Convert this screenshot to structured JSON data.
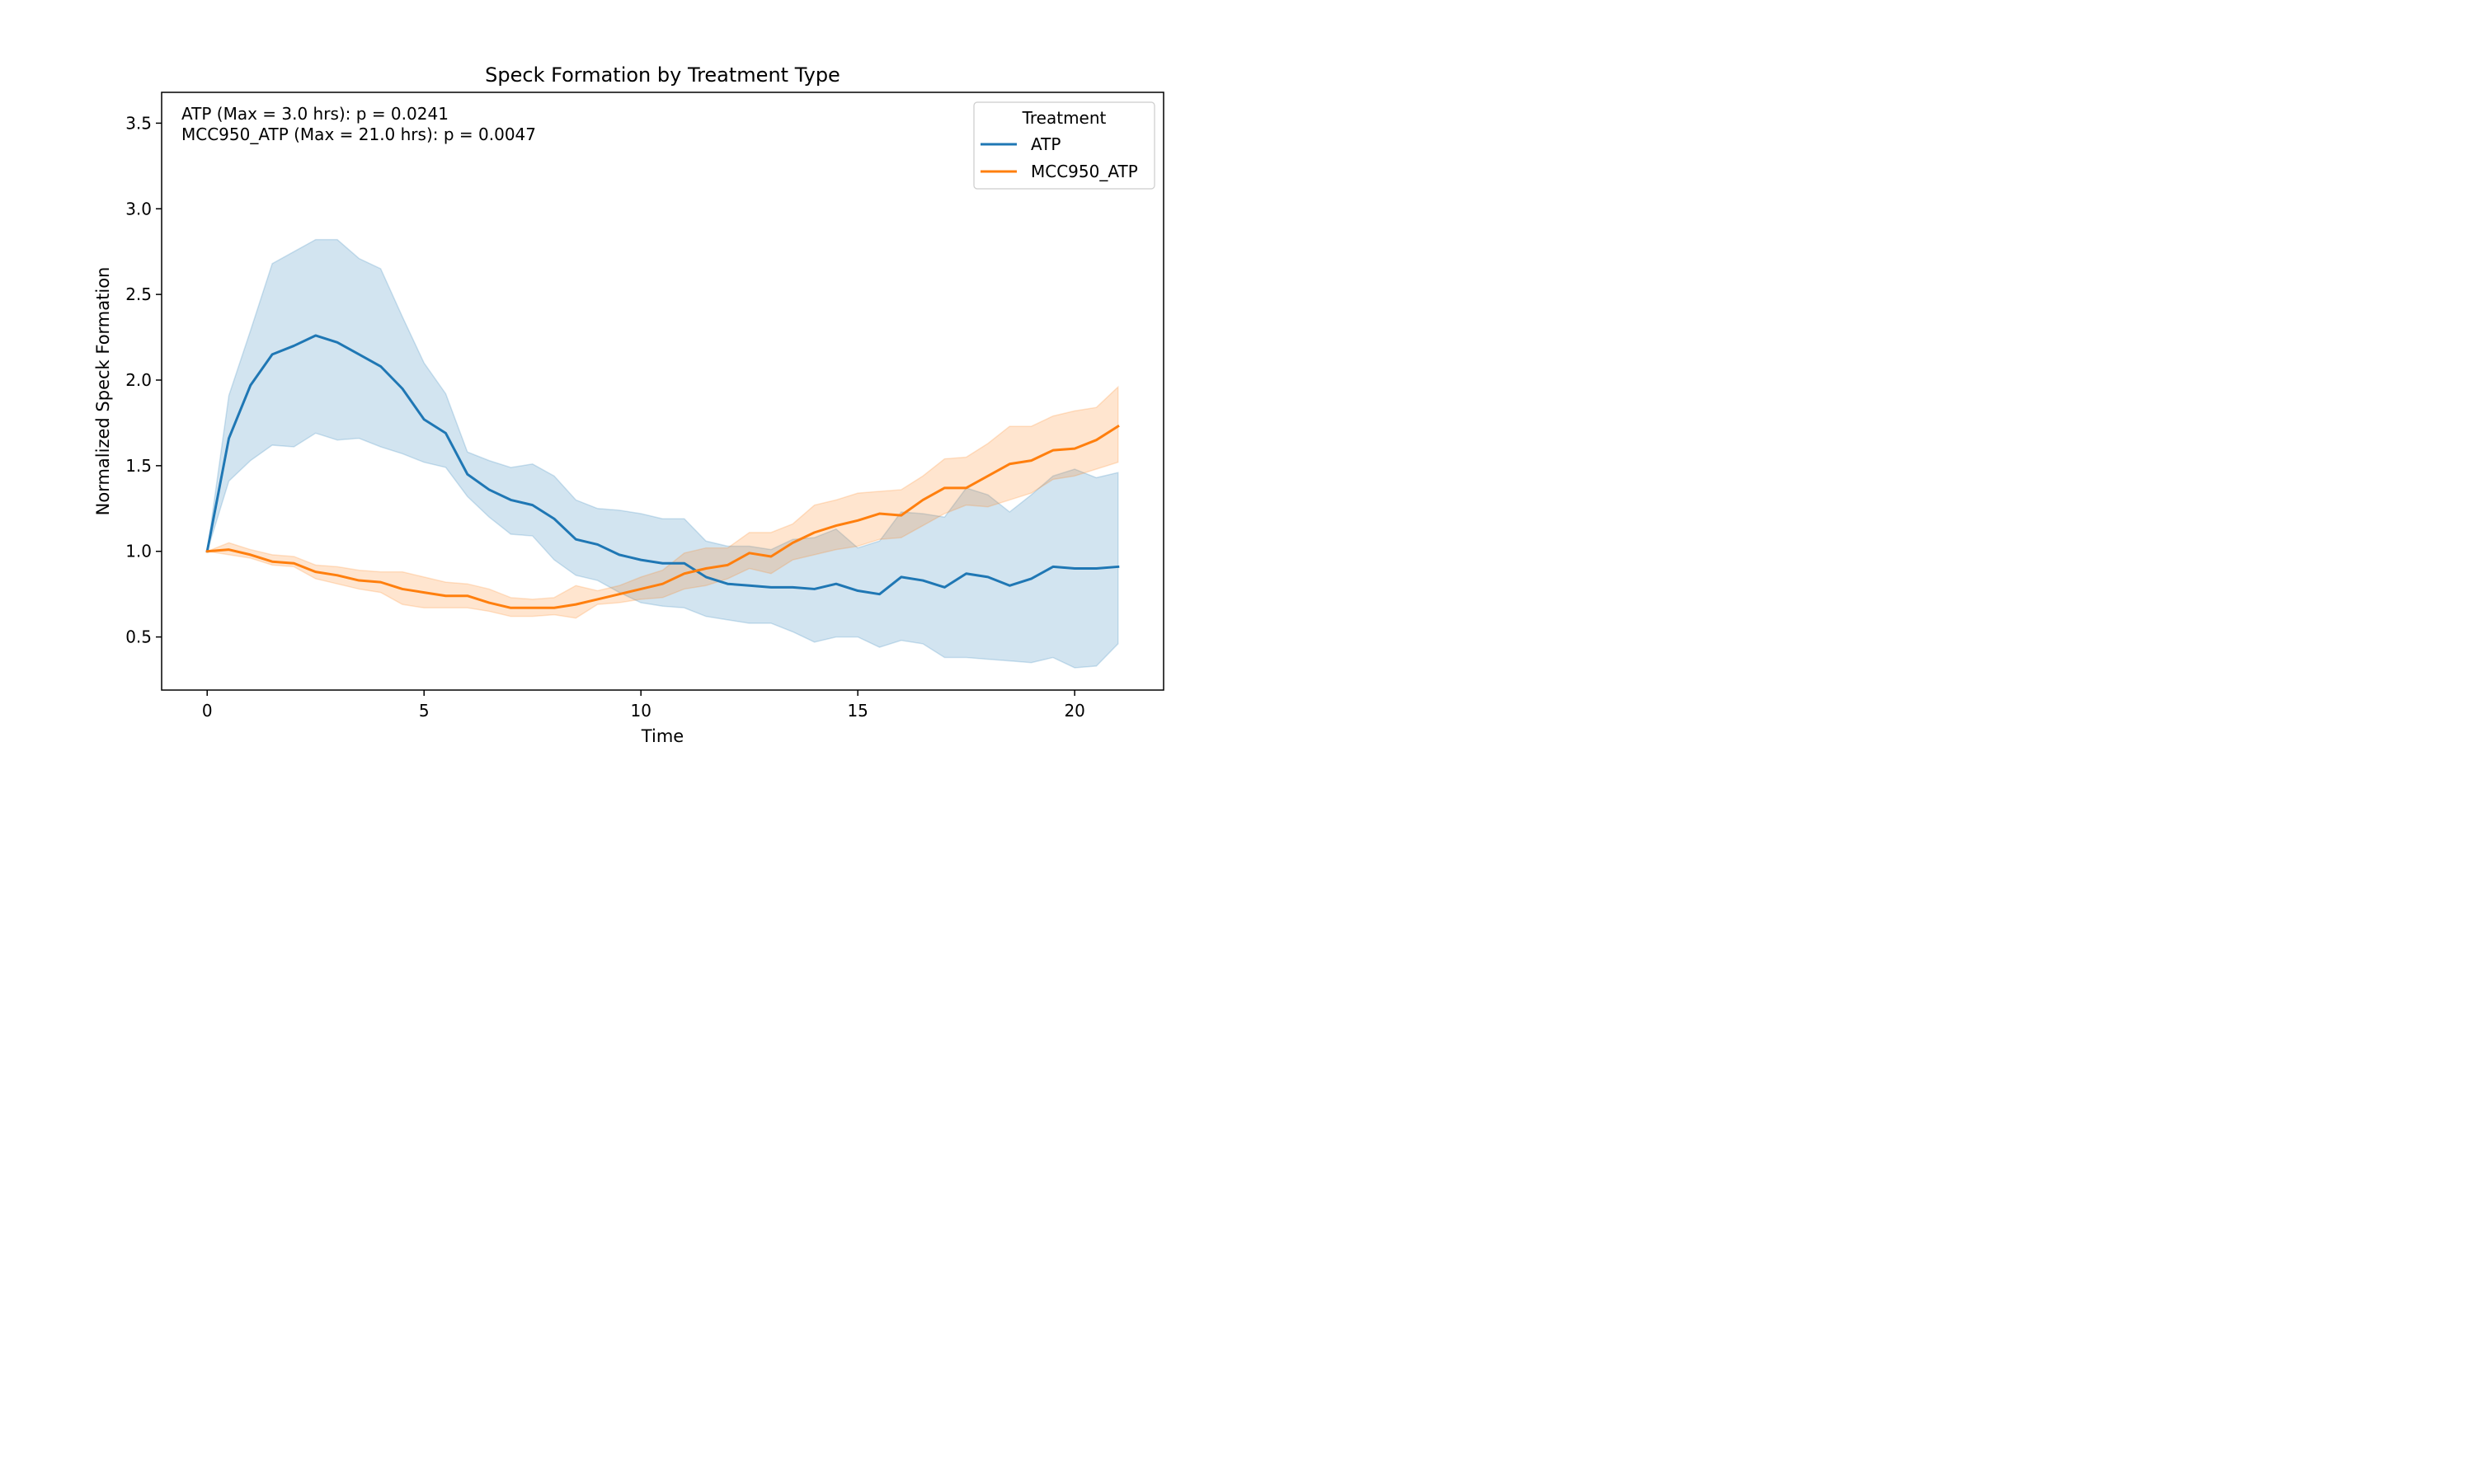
{
  "chart_data": {
    "type": "line",
    "title": "Speck Formation by Treatment Type",
    "xlabel": "Time",
    "ylabel": "Normalized Speck Formation",
    "xlim": [
      -1.05,
      22.05
    ],
    "ylim": [
      0.19,
      3.68
    ],
    "xticks": [
      0,
      5,
      10,
      15,
      20
    ],
    "xtick_labels": [
      "0",
      "5",
      "10",
      "15",
      "20"
    ],
    "yticks": [
      0.5,
      1.0,
      1.5,
      2.0,
      2.5,
      3.0,
      3.5
    ],
    "ytick_labels": [
      "0.5",
      "1.0",
      "1.5",
      "2.0",
      "2.5",
      "3.0",
      "3.5"
    ],
    "grid": false,
    "legend": {
      "title": "Treatment",
      "placement": "top-right",
      "entries": [
        "ATP",
        "MCC950_ATP"
      ]
    },
    "annotations": [
      "ATP (Max = 3.0 hrs): p = 0.0241",
      "MCC950_ATP (Max = 21.0 hrs): p = 0.0047"
    ],
    "x": [
      0,
      0.5,
      1,
      1.5,
      2,
      2.5,
      3,
      3.5,
      4,
      4.5,
      5,
      5.5,
      6,
      6.5,
      7,
      7.5,
      8,
      8.5,
      9,
      9.5,
      10,
      10.5,
      11,
      11.5,
      12,
      12.5,
      13,
      13.5,
      14,
      14.5,
      15,
      15.5,
      16,
      16.5,
      17,
      17.5,
      18,
      18.5,
      19,
      19.5,
      20,
      20.5,
      21
    ],
    "series": [
      {
        "name": "ATP",
        "color": "#1f77b4",
        "values": [
          1.0,
          1.66,
          1.97,
          2.15,
          2.2,
          2.26,
          2.22,
          2.15,
          2.08,
          1.95,
          1.77,
          1.69,
          1.45,
          1.36,
          1.3,
          1.27,
          1.19,
          1.07,
          1.04,
          0.98,
          0.95,
          0.93,
          0.93,
          0.85,
          0.81,
          0.8,
          0.79,
          0.79,
          0.78,
          0.81,
          0.77,
          0.75,
          0.85,
          0.83,
          0.79,
          0.87,
          0.85,
          0.8,
          0.84,
          0.91,
          0.9,
          0.9,
          0.91
        ],
        "lower": [
          1.0,
          1.41,
          1.53,
          1.62,
          1.61,
          1.69,
          1.65,
          1.66,
          1.61,
          1.57,
          1.52,
          1.49,
          1.32,
          1.2,
          1.1,
          1.09,
          0.95,
          0.86,
          0.83,
          0.76,
          0.7,
          0.68,
          0.67,
          0.62,
          0.6,
          0.58,
          0.58,
          0.53,
          0.47,
          0.5,
          0.5,
          0.44,
          0.48,
          0.46,
          0.38,
          0.38,
          0.37,
          0.36,
          0.35,
          0.38,
          0.32,
          0.33,
          0.46
        ],
        "upper": [
          1.0,
          1.91,
          2.29,
          2.68,
          2.75,
          2.82,
          2.82,
          2.71,
          2.65,
          2.37,
          2.1,
          1.92,
          1.58,
          1.53,
          1.49,
          1.51,
          1.44,
          1.3,
          1.25,
          1.24,
          1.22,
          1.19,
          1.19,
          1.06,
          1.03,
          1.03,
          1.01,
          1.07,
          1.08,
          1.13,
          1.02,
          1.06,
          1.23,
          1.22,
          1.2,
          1.37,
          1.33,
          1.23,
          1.33,
          1.44,
          1.48,
          1.43,
          1.46
        ]
      },
      {
        "name": "MCC950_ATP",
        "color": "#ff7f0e",
        "values": [
          1.0,
          1.01,
          0.98,
          0.94,
          0.93,
          0.88,
          0.86,
          0.83,
          0.82,
          0.78,
          0.76,
          0.74,
          0.74,
          0.7,
          0.67,
          0.67,
          0.67,
          0.69,
          0.72,
          0.75,
          0.78,
          0.81,
          0.87,
          0.9,
          0.92,
          0.99,
          0.97,
          1.05,
          1.11,
          1.15,
          1.18,
          1.22,
          1.21,
          1.3,
          1.37,
          1.37,
          1.44,
          1.51,
          1.53,
          1.59,
          1.6,
          1.65,
          1.73
        ],
        "lower": [
          1.0,
          0.98,
          0.96,
          0.92,
          0.91,
          0.84,
          0.81,
          0.78,
          0.76,
          0.69,
          0.67,
          0.67,
          0.67,
          0.65,
          0.62,
          0.62,
          0.63,
          0.61,
          0.69,
          0.7,
          0.72,
          0.73,
          0.78,
          0.8,
          0.84,
          0.9,
          0.87,
          0.95,
          0.98,
          1.01,
          1.03,
          1.07,
          1.08,
          1.15,
          1.22,
          1.27,
          1.26,
          1.3,
          1.34,
          1.42,
          1.44,
          1.48,
          1.52
        ],
        "upper": [
          1.0,
          1.05,
          1.01,
          0.98,
          0.97,
          0.92,
          0.91,
          0.89,
          0.88,
          0.88,
          0.85,
          0.82,
          0.81,
          0.78,
          0.73,
          0.72,
          0.73,
          0.8,
          0.77,
          0.8,
          0.85,
          0.89,
          0.99,
          1.02,
          1.02,
          1.11,
          1.11,
          1.16,
          1.27,
          1.3,
          1.34,
          1.35,
          1.36,
          1.44,
          1.54,
          1.55,
          1.63,
          1.73,
          1.73,
          1.79,
          1.82,
          1.84,
          1.96
        ]
      }
    ]
  }
}
